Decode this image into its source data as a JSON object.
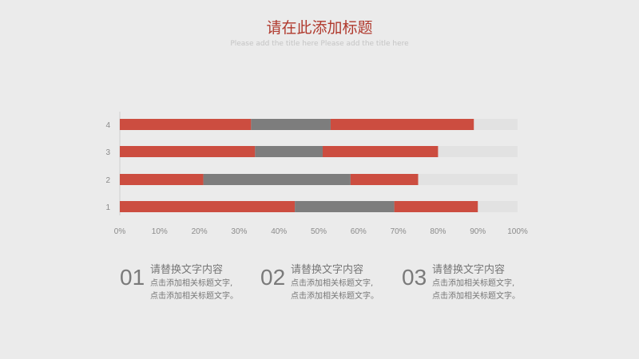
{
  "header": {
    "title": "请在此添加标题",
    "subtitle": "Please add the title here Please add the title here"
  },
  "colors": {
    "red": "#cc4d40",
    "gray": "#7d7d7d",
    "track": "#e2e2e2",
    "title": "#b03a2e"
  },
  "chart_data": {
    "type": "bar",
    "orientation": "horizontal",
    "stacked": true,
    "categories": [
      "1",
      "2",
      "3",
      "4"
    ],
    "series": [
      {
        "values": [
          44,
          21,
          34,
          33
        ],
        "color": "#cc4d40"
      },
      {
        "values": [
          25,
          37,
          17,
          20
        ],
        "color": "#7d7d7d"
      },
      {
        "values": [
          21,
          17,
          29,
          36
        ],
        "color": "#cc4d40"
      }
    ],
    "xlim": [
      0,
      100
    ],
    "x_ticks": [
      "0%",
      "10%",
      "20%",
      "30%",
      "40%",
      "50%",
      "60%",
      "70%",
      "80%",
      "90%",
      "100%"
    ],
    "grid": false,
    "legend": "none",
    "background_track": true
  },
  "items": [
    {
      "num": "01",
      "heading": "请替换文字内容",
      "line1": "点击添加相关标题文字,",
      "line2": "点击添加相关标题文字。"
    },
    {
      "num": "02",
      "heading": "请替换文字内容",
      "line1": "点击添加相关标题文字,",
      "line2": "点击添加相关标题文字。"
    },
    {
      "num": "03",
      "heading": "请替换文字内容",
      "line1": "点击添加相关标题文字,",
      "line2": "点击添加相关标题文字。"
    }
  ]
}
